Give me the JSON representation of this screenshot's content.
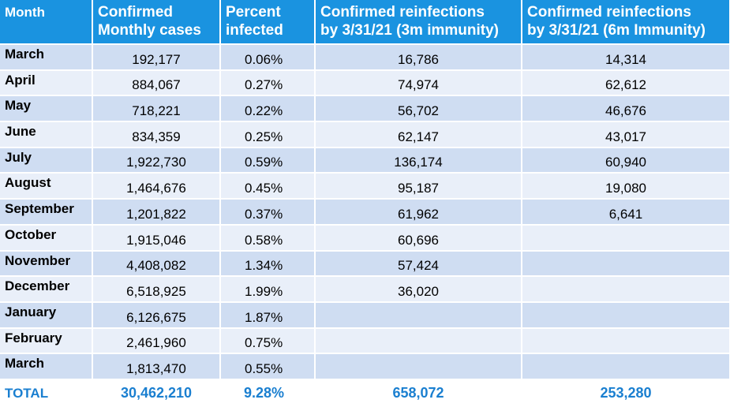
{
  "header": {
    "month": "Month",
    "cases_line1": "Confirmed",
    "cases_line2": "Monthly cases",
    "percent_line1": "Percent",
    "percent_line2": "infected",
    "reinf3_line1": "Confirmed reinfections",
    "reinf3_line2": "by 3/31/21 (3m immunity)",
    "reinf6_line1": "Confirmed reinfections",
    "reinf6_line2": "by 3/31/21 (6m Immunity)"
  },
  "rows": [
    {
      "month": "March",
      "cases": "192,177",
      "percent": "0.06%",
      "reinf3": "16,786",
      "reinf6": "14,314"
    },
    {
      "month": "April",
      "cases": "884,067",
      "percent": "0.27%",
      "reinf3": "74,974",
      "reinf6": "62,612"
    },
    {
      "month": "May",
      "cases": "718,221",
      "percent": "0.22%",
      "reinf3": "56,702",
      "reinf6": "46,676"
    },
    {
      "month": "June",
      "cases": "834,359",
      "percent": "0.25%",
      "reinf3": "62,147",
      "reinf6": "43,017"
    },
    {
      "month": "July",
      "cases": "1,922,730",
      "percent": "0.59%",
      "reinf3": "136,174",
      "reinf6": "60,940"
    },
    {
      "month": "August",
      "cases": "1,464,676",
      "percent": "0.45%",
      "reinf3": "95,187",
      "reinf6": "19,080"
    },
    {
      "month": "September",
      "cases": "1,201,822",
      "percent": "0.37%",
      "reinf3": "61,962",
      "reinf6": "6,641"
    },
    {
      "month": "October",
      "cases": "1,915,046",
      "percent": "0.58%",
      "reinf3": "60,696",
      "reinf6": ""
    },
    {
      "month": "November",
      "cases": "4,408,082",
      "percent": "1.34%",
      "reinf3": "57,424",
      "reinf6": ""
    },
    {
      "month": "December",
      "cases": "6,518,925",
      "percent": "1.99%",
      "reinf3": "36,020",
      "reinf6": ""
    },
    {
      "month": "January",
      "cases": "6,126,675",
      "percent": "1.87%",
      "reinf3": "",
      "reinf6": ""
    },
    {
      "month": "February",
      "cases": "2,461,960",
      "percent": "0.75%",
      "reinf3": "",
      "reinf6": ""
    },
    {
      "month": "March",
      "cases": "1,813,470",
      "percent": "0.55%",
      "reinf3": "",
      "reinf6": ""
    }
  ],
  "total": {
    "label": "TOTAL",
    "cases": "30,462,210",
    "percent": "9.28%",
    "reinf3": "658,072",
    "reinf6": "253,280"
  },
  "colors": {
    "header_bg": "#1a93e0",
    "row_dark": "#cfddf2",
    "row_light": "#e9eff9",
    "total_text": "#1a7fd0"
  }
}
